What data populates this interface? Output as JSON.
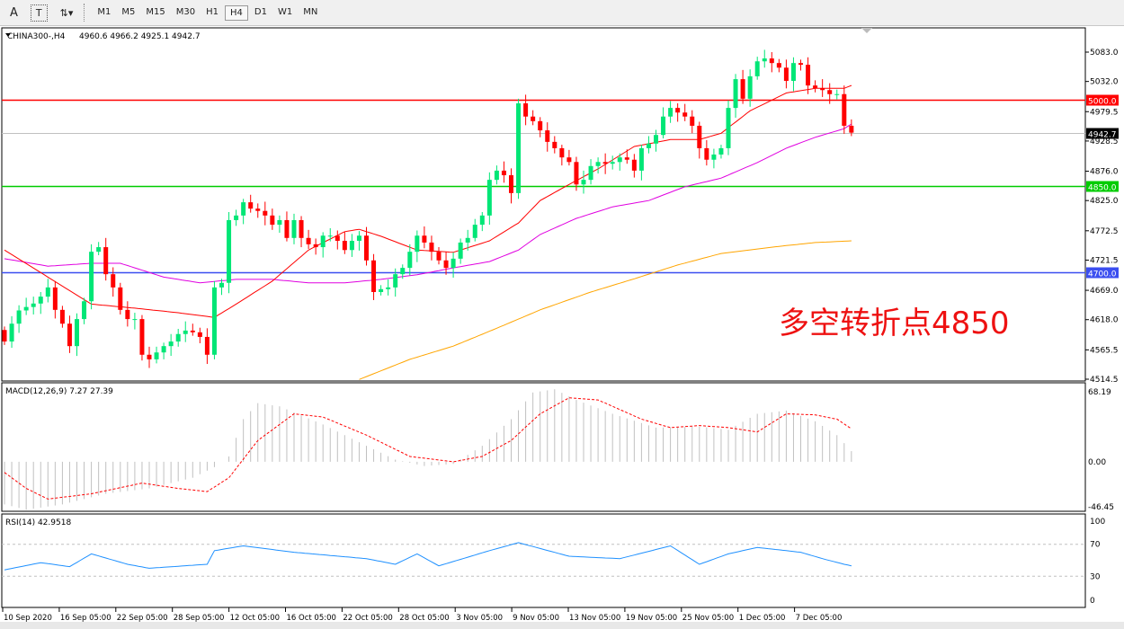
{
  "toolbar": {
    "text_tool": "A",
    "textlabel_tool": "T",
    "timeframes": [
      "M1",
      "M5",
      "M15",
      "M30",
      "H1",
      "H4",
      "D1",
      "W1",
      "MN"
    ],
    "active_timeframe": "H4"
  },
  "header": {
    "symbol": "CHINA300-,H4",
    "ohlc": "4960.6 4966.2 4925.1 4942.7"
  },
  "annotation": "多空转折点4850",
  "price_axis": {
    "ticks": [
      "5083.0",
      "5032.0",
      "4979.5",
      "4928.5",
      "4876.0",
      "4825.0",
      "4772.5",
      "4721.5",
      "4669.0",
      "4618.0",
      "4565.5",
      "4514.5"
    ],
    "range": [
      4514.5,
      5083.0
    ]
  },
  "levels": [
    {
      "value": 5000.0,
      "label": "5000.0",
      "color": "#ff0000"
    },
    {
      "value": 4850.0,
      "label": "4850.0",
      "color": "#00cc00"
    },
    {
      "value": 4700.0,
      "label": "4700.0",
      "color": "#3b4ef0"
    },
    {
      "value": 4942.7,
      "label": "4942.7",
      "color": "#000000",
      "line": "#c0c0c0"
    }
  ],
  "time_axis": [
    "10 Sep 2020",
    "16 Sep 05:00",
    "22 Sep 05:00",
    "28 Sep 05:00",
    "12 Oct 05:00",
    "16 Oct 05:00",
    "22 Oct 05:00",
    "28 Oct 05:00",
    "3 Nov 05:00",
    "9 Nov 05:00",
    "13 Nov 05:00",
    "19 Nov 05:00",
    "25 Nov 05:00",
    "1 Dec 05:00",
    "7 Dec 05:00"
  ],
  "chart_data": {
    "type": "candlestick",
    "colors": {
      "up": "#00e676",
      "down": "#ff0000",
      "ma_fast": "#ff0000",
      "ma_mid": "#e000e0",
      "ma_slow": "#ffa500"
    },
    "closes": [
      4580,
      4611,
      4634,
      4640,
      4646,
      4658,
      4674,
      4635,
      4611,
      4572,
      4619,
      4650,
      4736,
      4744,
      4697,
      4674,
      4635,
      4619,
      4619,
      4557,
      4549,
      4561,
      4572,
      4580,
      4593,
      4599,
      4596,
      4588,
      4557,
      4674,
      4682,
      4791,
      4799,
      4822,
      4811,
      4807,
      4799,
      4783,
      4791,
      4760,
      4791,
      4760,
      4749,
      4744,
      4764,
      4764,
      4755,
      4739,
      4755,
      4764,
      4721,
      4666,
      4671,
      4674,
      4697,
      4708,
      4736,
      4764,
      4752,
      4736,
      4721,
      4708,
      4724,
      4752,
      4760,
      4783,
      4799,
      4861,
      4877,
      4869,
      4838,
      4994,
      4971,
      4963,
      4947,
      4927,
      4916,
      4900,
      4892,
      4853,
      4861,
      4885,
      4892,
      4889,
      4892,
      4900,
      4896,
      4877,
      4916,
      4924,
      4939,
      4971,
      4986,
      4978,
      4971,
      4955,
      4916,
      4896,
      4905,
      4916,
      4986,
      5036,
      5002,
      5041,
      5067,
      5072,
      5064,
      5056,
      5033,
      5064,
      5061,
      5025,
      5020,
      5017,
      5010,
      5010,
      4955,
      4943
    ],
    "ma_fast": [
      [
        0,
        4739
      ],
      [
        6,
        4692
      ],
      [
        12,
        4645
      ],
      [
        18,
        4638
      ],
      [
        24,
        4630
      ],
      [
        29,
        4622
      ],
      [
        32,
        4645
      ],
      [
        37,
        4685
      ],
      [
        42,
        4739
      ],
      [
        47,
        4771
      ],
      [
        49,
        4775
      ],
      [
        52,
        4763
      ],
      [
        57,
        4739
      ],
      [
        62,
        4735
      ],
      [
        67,
        4755
      ],
      [
        71,
        4786
      ],
      [
        74,
        4825
      ],
      [
        78,
        4853
      ],
      [
        82,
        4880
      ],
      [
        87,
        4919
      ],
      [
        92,
        4931
      ],
      [
        96,
        4931
      ],
      [
        99,
        4942
      ],
      [
        103,
        4981
      ],
      [
        108,
        5012
      ],
      [
        112,
        5020
      ],
      [
        116,
        5020
      ],
      [
        117,
        5025
      ]
    ],
    "ma_mid": [
      [
        0,
        4724
      ],
      [
        6,
        4711
      ],
      [
        12,
        4716
      ],
      [
        16,
        4716
      ],
      [
        22,
        4692
      ],
      [
        27,
        4682
      ],
      [
        32,
        4688
      ],
      [
        37,
        4688
      ],
      [
        42,
        4682
      ],
      [
        47,
        4682
      ],
      [
        52,
        4688
      ],
      [
        57,
        4696
      ],
      [
        62,
        4708
      ],
      [
        67,
        4719
      ],
      [
        71,
        4739
      ],
      [
        74,
        4766
      ],
      [
        79,
        4794
      ],
      [
        84,
        4814
      ],
      [
        89,
        4825
      ],
      [
        94,
        4849
      ],
      [
        99,
        4864
      ],
      [
        104,
        4891
      ],
      [
        108,
        4916
      ],
      [
        112,
        4935
      ],
      [
        116,
        4950
      ],
      [
        117,
        4958
      ]
    ],
    "ma_slow": [
      [
        49,
        4514
      ],
      [
        56,
        4549
      ],
      [
        62,
        4572
      ],
      [
        68,
        4603
      ],
      [
        74,
        4635
      ],
      [
        81,
        4666
      ],
      [
        87,
        4689
      ],
      [
        93,
        4713
      ],
      [
        99,
        4733
      ],
      [
        106,
        4744
      ],
      [
        112,
        4752
      ],
      [
        117,
        4755
      ]
    ]
  },
  "macd": {
    "label": "MACD(12,26,9) 7.27 27.39",
    "ticks": [
      "68.19",
      "0.00",
      "-46.45"
    ],
    "range": [
      -46.45,
      68.19
    ],
    "histogram": [
      [
        0,
        -40
      ],
      [
        3,
        -45
      ],
      [
        8,
        -40
      ],
      [
        14,
        -30
      ],
      [
        20,
        -25
      ],
      [
        26,
        -15
      ],
      [
        29,
        -5
      ],
      [
        31,
        5
      ],
      [
        33,
        40
      ],
      [
        35,
        55
      ],
      [
        38,
        52
      ],
      [
        44,
        35
      ],
      [
        50,
        15
      ],
      [
        54,
        2
      ],
      [
        58,
        -4
      ],
      [
        62,
        -2
      ],
      [
        66,
        15
      ],
      [
        70,
        40
      ],
      [
        73,
        65
      ],
      [
        76,
        68
      ],
      [
        79,
        58
      ],
      [
        84,
        45
      ],
      [
        90,
        32
      ],
      [
        96,
        33
      ],
      [
        100,
        30
      ],
      [
        104,
        45
      ],
      [
        108,
        48
      ],
      [
        112,
        38
      ],
      [
        115,
        25
      ],
      [
        117,
        10
      ]
    ],
    "signal": [
      [
        0,
        -10
      ],
      [
        3,
        -25
      ],
      [
        6,
        -35
      ],
      [
        12,
        -30
      ],
      [
        19,
        -20
      ],
      [
        24,
        -25
      ],
      [
        28,
        -28
      ],
      [
        31,
        -15
      ],
      [
        35,
        20
      ],
      [
        40,
        45
      ],
      [
        44,
        42
      ],
      [
        50,
        25
      ],
      [
        56,
        5
      ],
      [
        62,
        0
      ],
      [
        66,
        5
      ],
      [
        70,
        20
      ],
      [
        74,
        45
      ],
      [
        78,
        60
      ],
      [
        82,
        58
      ],
      [
        88,
        40
      ],
      [
        92,
        32
      ],
      [
        96,
        34
      ],
      [
        100,
        32
      ],
      [
        104,
        28
      ],
      [
        108,
        45
      ],
      [
        112,
        44
      ],
      [
        115,
        40
      ],
      [
        117,
        31
      ]
    ]
  },
  "rsi": {
    "label": "RSI(14) 42.9518",
    "ticks": [
      "100",
      "70",
      "30",
      "0"
    ],
    "levels": [
      70,
      30
    ],
    "values": [
      [
        0,
        38
      ],
      [
        5,
        47
      ],
      [
        9,
        42
      ],
      [
        12,
        58
      ],
      [
        17,
        45
      ],
      [
        20,
        40
      ],
      [
        28,
        45
      ],
      [
        29,
        62
      ],
      [
        33,
        68
      ],
      [
        40,
        60
      ],
      [
        50,
        52
      ],
      [
        54,
        45
      ],
      [
        57,
        58
      ],
      [
        60,
        43
      ],
      [
        67,
        62
      ],
      [
        71,
        72
      ],
      [
        78,
        55
      ],
      [
        85,
        52
      ],
      [
        92,
        68
      ],
      [
        96,
        45
      ],
      [
        100,
        58
      ],
      [
        104,
        66
      ],
      [
        110,
        60
      ],
      [
        113,
        52
      ],
      [
        116,
        45
      ],
      [
        117,
        43
      ]
    ]
  }
}
